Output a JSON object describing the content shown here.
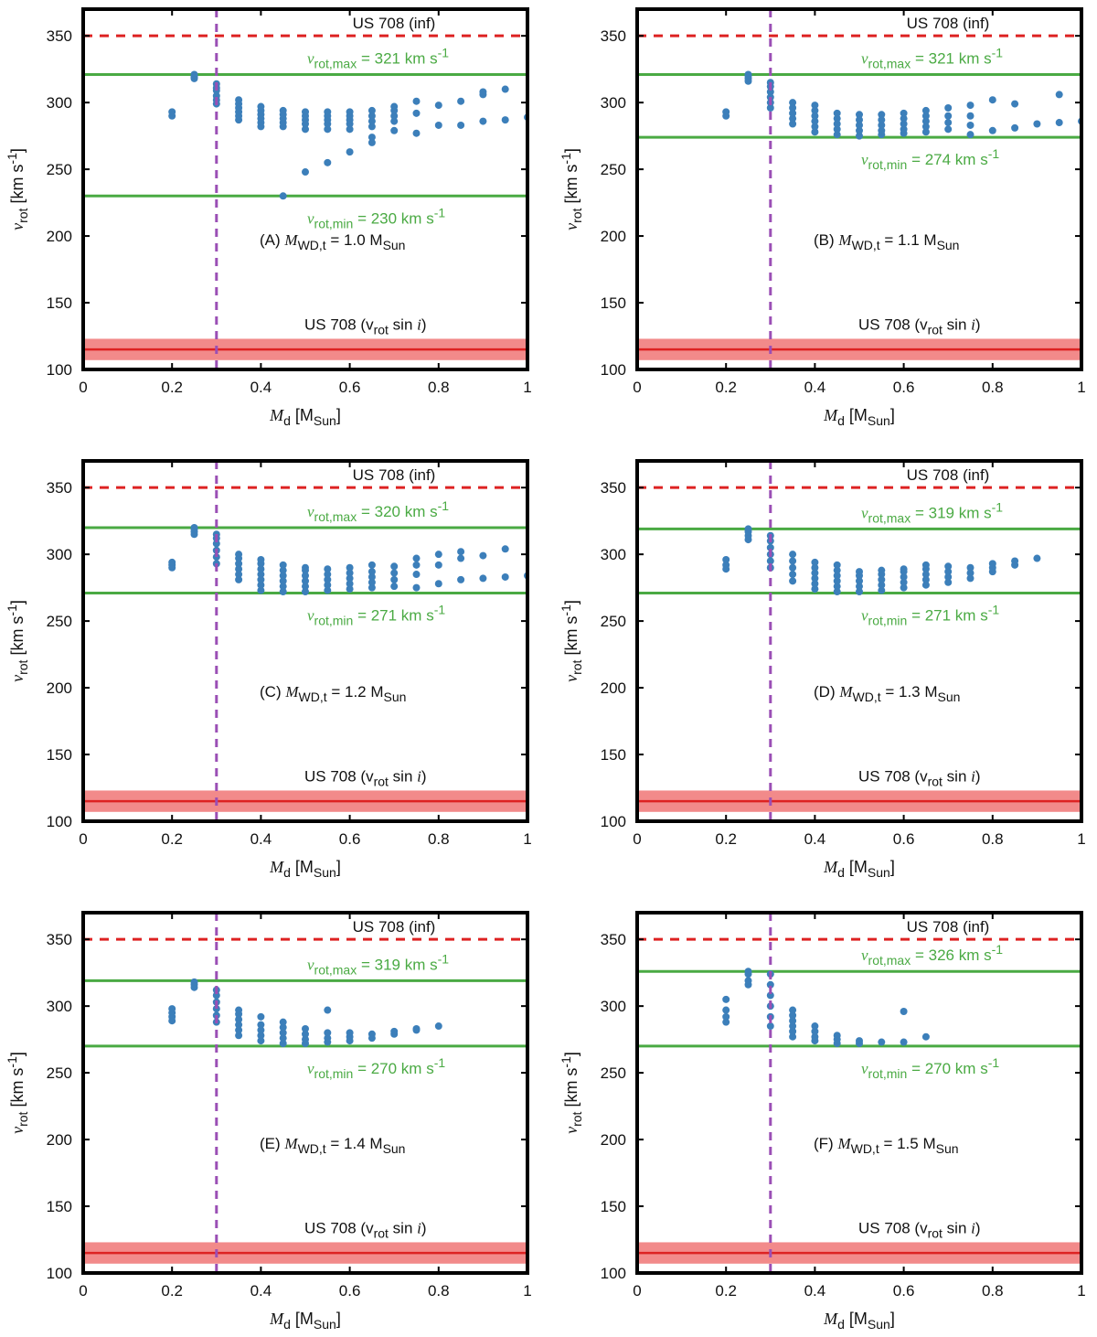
{
  "colors": {
    "dots": "#3c7fba",
    "green": "#4aaa43",
    "red": "#dd2222",
    "red_band": "#f28a8a",
    "purple": "#9b4fb5",
    "axis": "#000000"
  },
  "chart_data": [
    {
      "type": "scatter",
      "panel": "A",
      "label_prefix": "(A) ",
      "label_mass": "1.0",
      "xlabel_main": "M",
      "xlabel_sub": "d",
      "xlabel_unit_open": " [M",
      "xlabel_unit_sub": "Sun",
      "xlabel_unit_close": "]",
      "ylabel_main": "v",
      "ylabel_sub": "rot",
      "ylabel_unit": " [km s",
      "ylabel_unit_sup": "-1",
      "ylabel_unit_close": "]",
      "xlim": [
        0,
        1
      ],
      "ylim": [
        100,
        370
      ],
      "xticks": [
        "0",
        "0.2",
        "0.4",
        "0.6",
        "0.8",
        "1"
      ],
      "yticks": [
        "100",
        "150",
        "200",
        "250",
        "300",
        "350"
      ],
      "vrot_max": 321,
      "vrot_max_text": "321",
      "vrot_min": 230,
      "vrot_min_text": "230",
      "us708_inf": 350,
      "us708_inf_label": "US 708 (inf)",
      "us708_vsini": 115,
      "us708_vsini_band": [
        107,
        123
      ],
      "us708_vsini_label": "US 708 (v",
      "vline_x": 0.3,
      "series": [
        {
          "x": 0.2,
          "y": [
            290,
            293
          ]
        },
        {
          "x": 0.25,
          "y": [
            318,
            319,
            320,
            321
          ]
        },
        {
          "x": 0.3,
          "y": [
            299,
            302,
            305,
            309,
            311,
            314
          ]
        },
        {
          "x": 0.35,
          "y": [
            287,
            290,
            293,
            296,
            299,
            302
          ]
        },
        {
          "x": 0.4,
          "y": [
            282,
            285,
            288,
            291,
            294,
            297
          ]
        },
        {
          "x": 0.45,
          "y": [
            230,
            282,
            285,
            288,
            291,
            294
          ]
        },
        {
          "x": 0.5,
          "y": [
            248,
            280,
            284,
            287,
            290,
            293
          ]
        },
        {
          "x": 0.55,
          "y": [
            255,
            280,
            284,
            287,
            290,
            293
          ]
        },
        {
          "x": 0.6,
          "y": [
            263,
            280,
            284,
            287,
            290,
            293
          ]
        },
        {
          "x": 0.65,
          "y": [
            270,
            274,
            282,
            286,
            290,
            294
          ]
        },
        {
          "x": 0.7,
          "y": [
            279,
            286,
            290,
            294,
            297
          ]
        },
        {
          "x": 0.75,
          "y": [
            277,
            292,
            301
          ]
        },
        {
          "x": 0.8,
          "y": [
            283,
            298
          ]
        },
        {
          "x": 0.85,
          "y": [
            283,
            301
          ]
        },
        {
          "x": 0.9,
          "y": [
            286,
            306,
            308
          ]
        },
        {
          "x": 0.95,
          "y": [
            287,
            310
          ]
        },
        {
          "x": 1.0,
          "y": [
            289
          ]
        }
      ]
    },
    {
      "type": "scatter",
      "panel": "B",
      "label_prefix": "(B) ",
      "label_mass": "1.1",
      "xlabel_main": "M",
      "xlabel_sub": "d",
      "xlabel_unit_open": " [M",
      "xlabel_unit_sub": "Sun",
      "xlabel_unit_close": "]",
      "ylabel_main": "v",
      "ylabel_sub": "rot",
      "ylabel_unit": " [km s",
      "ylabel_unit_sup": "-1",
      "ylabel_unit_close": "]",
      "xlim": [
        0,
        1
      ],
      "ylim": [
        100,
        370
      ],
      "xticks": [
        "0",
        "0.2",
        "0.4",
        "0.6",
        "0.8",
        "1"
      ],
      "yticks": [
        "100",
        "150",
        "200",
        "250",
        "300",
        "350"
      ],
      "vrot_max": 321,
      "vrot_max_text": "321",
      "vrot_min": 274,
      "vrot_min_text": "274",
      "us708_inf": 350,
      "us708_inf_label": "US 708 (inf)",
      "us708_vsini": 115,
      "us708_vsini_band": [
        107,
        123
      ],
      "us708_vsini_label": "US 708 (v",
      "vline_x": 0.3,
      "series": [
        {
          "x": 0.2,
          "y": [
            290,
            293
          ]
        },
        {
          "x": 0.25,
          "y": [
            316,
            318,
            320,
            321
          ]
        },
        {
          "x": 0.3,
          "y": [
            296,
            300,
            304,
            308,
            312,
            315
          ]
        },
        {
          "x": 0.35,
          "y": [
            284,
            288,
            292,
            296,
            300
          ]
        },
        {
          "x": 0.4,
          "y": [
            278,
            282,
            286,
            290,
            294,
            298
          ]
        },
        {
          "x": 0.45,
          "y": [
            276,
            280,
            284,
            288,
            292
          ]
        },
        {
          "x": 0.5,
          "y": [
            275,
            279,
            283,
            287,
            291
          ]
        },
        {
          "x": 0.55,
          "y": [
            276,
            279,
            283,
            287,
            291
          ]
        },
        {
          "x": 0.6,
          "y": [
            277,
            280,
            284,
            288,
            292
          ]
        },
        {
          "x": 0.65,
          "y": [
            278,
            282,
            286,
            290,
            294
          ]
        },
        {
          "x": 0.7,
          "y": [
            280,
            285,
            290,
            296
          ]
        },
        {
          "x": 0.75,
          "y": [
            276,
            283,
            290,
            298
          ]
        },
        {
          "x": 0.8,
          "y": [
            279,
            302
          ]
        },
        {
          "x": 0.85,
          "y": [
            281,
            299
          ]
        },
        {
          "x": 0.9,
          "y": [
            284
          ]
        },
        {
          "x": 0.95,
          "y": [
            285,
            306
          ]
        },
        {
          "x": 1.0,
          "y": [
            286
          ]
        }
      ]
    },
    {
      "type": "scatter",
      "panel": "C",
      "label_prefix": "(C) ",
      "label_mass": "1.2",
      "xlabel_main": "M",
      "xlabel_sub": "d",
      "xlabel_unit_open": " [M",
      "xlabel_unit_sub": "Sun",
      "xlabel_unit_close": "]",
      "ylabel_main": "v",
      "ylabel_sub": "rot",
      "ylabel_unit": " [km s",
      "ylabel_unit_sup": "-1",
      "ylabel_unit_close": "]",
      "xlim": [
        0,
        1
      ],
      "ylim": [
        100,
        370
      ],
      "xticks": [
        "0",
        "0.2",
        "0.4",
        "0.6",
        "0.8",
        "1"
      ],
      "yticks": [
        "100",
        "150",
        "200",
        "250",
        "300",
        "350"
      ],
      "vrot_max": 320,
      "vrot_max_text": "320",
      "vrot_min": 271,
      "vrot_min_text": "271",
      "us708_inf": 350,
      "us708_inf_label": "US 708 (inf)",
      "us708_vsini": 115,
      "us708_vsini_band": [
        107,
        123
      ],
      "us708_vsini_label": "US 708 (v",
      "vline_x": 0.3,
      "series": [
        {
          "x": 0.2,
          "y": [
            290,
            292,
            294
          ]
        },
        {
          "x": 0.25,
          "y": [
            315,
            317,
            319,
            320
          ]
        },
        {
          "x": 0.3,
          "y": [
            293,
            298,
            303,
            308,
            312,
            315
          ]
        },
        {
          "x": 0.35,
          "y": [
            281,
            285,
            289,
            293,
            297,
            300
          ]
        },
        {
          "x": 0.4,
          "y": [
            273,
            277,
            281,
            285,
            289,
            293,
            296
          ]
        },
        {
          "x": 0.45,
          "y": [
            272,
            276,
            280,
            284,
            288,
            292
          ]
        },
        {
          "x": 0.5,
          "y": [
            272,
            276,
            280,
            284,
            288,
            290
          ]
        },
        {
          "x": 0.55,
          "y": [
            273,
            277,
            281,
            285,
            289
          ]
        },
        {
          "x": 0.6,
          "y": [
            274,
            278,
            282,
            286,
            290
          ]
        },
        {
          "x": 0.65,
          "y": [
            275,
            279,
            283,
            287,
            292
          ]
        },
        {
          "x": 0.7,
          "y": [
            276,
            281,
            286,
            291
          ]
        },
        {
          "x": 0.75,
          "y": [
            275,
            285,
            292,
            297
          ]
        },
        {
          "x": 0.8,
          "y": [
            278,
            292,
            300
          ]
        },
        {
          "x": 0.85,
          "y": [
            281,
            297,
            302
          ]
        },
        {
          "x": 0.9,
          "y": [
            282,
            299
          ]
        },
        {
          "x": 0.95,
          "y": [
            283,
            304
          ]
        },
        {
          "x": 1.0,
          "y": [
            284
          ]
        }
      ]
    },
    {
      "type": "scatter",
      "panel": "D",
      "label_prefix": "(D) ",
      "label_mass": "1.3",
      "xlabel_main": "M",
      "xlabel_sub": "d",
      "xlabel_unit_open": " [M",
      "xlabel_unit_sub": "Sun",
      "xlabel_unit_close": "]",
      "ylabel_main": "v",
      "ylabel_sub": "rot",
      "ylabel_unit": " [km s",
      "ylabel_unit_sup": "-1",
      "ylabel_unit_close": "]",
      "xlim": [
        0,
        1
      ],
      "ylim": [
        100,
        370
      ],
      "xticks": [
        "0",
        "0.2",
        "0.4",
        "0.6",
        "0.8",
        "1"
      ],
      "yticks": [
        "100",
        "150",
        "200",
        "250",
        "300",
        "350"
      ],
      "vrot_max": 319,
      "vrot_max_text": "319",
      "vrot_min": 271,
      "vrot_min_text": "271",
      "us708_inf": 350,
      "us708_inf_label": "US 708 (inf)",
      "us708_vsini": 115,
      "us708_vsini_band": [
        107,
        123
      ],
      "us708_vsini_label": "US 708 (v",
      "vline_x": 0.3,
      "series": [
        {
          "x": 0.2,
          "y": [
            289,
            292,
            296
          ]
        },
        {
          "x": 0.25,
          "y": [
            311,
            314,
            317,
            319
          ]
        },
        {
          "x": 0.3,
          "y": [
            290,
            295,
            300,
            305,
            310,
            314
          ]
        },
        {
          "x": 0.35,
          "y": [
            280,
            285,
            290,
            295,
            300
          ]
        },
        {
          "x": 0.4,
          "y": [
            274,
            278,
            282,
            286,
            290,
            294
          ]
        },
        {
          "x": 0.45,
          "y": [
            272,
            276,
            280,
            284,
            288,
            292
          ]
        },
        {
          "x": 0.5,
          "y": [
            272,
            276,
            280,
            284,
            287
          ]
        },
        {
          "x": 0.55,
          "y": [
            273,
            277,
            281,
            285,
            288
          ]
        },
        {
          "x": 0.6,
          "y": [
            275,
            279,
            283,
            287,
            289
          ]
        },
        {
          "x": 0.65,
          "y": [
            277,
            281,
            285,
            289,
            292
          ]
        },
        {
          "x": 0.7,
          "y": [
            279,
            283,
            287,
            291
          ]
        },
        {
          "x": 0.75,
          "y": [
            282,
            286,
            290
          ]
        },
        {
          "x": 0.8,
          "y": [
            287,
            290,
            293
          ]
        },
        {
          "x": 0.85,
          "y": [
            292,
            295
          ]
        },
        {
          "x": 0.9,
          "y": [
            297
          ]
        }
      ]
    },
    {
      "type": "scatter",
      "panel": "E",
      "label_prefix": "(E) ",
      "label_mass": "1.4",
      "xlabel_main": "M",
      "xlabel_sub": "d",
      "xlabel_unit_open": " [M",
      "xlabel_unit_sub": "Sun",
      "xlabel_unit_close": "]",
      "ylabel_main": "v",
      "ylabel_sub": "rot",
      "ylabel_unit": " [km s",
      "ylabel_unit_sup": "-1",
      "ylabel_unit_close": "]",
      "xlim": [
        0,
        1
      ],
      "ylim": [
        100,
        370
      ],
      "xticks": [
        "0",
        "0.2",
        "0.4",
        "0.6",
        "0.8",
        "1"
      ],
      "yticks": [
        "100",
        "150",
        "200",
        "250",
        "300",
        "350"
      ],
      "vrot_max": 319,
      "vrot_max_text": "319",
      "vrot_min": 270,
      "vrot_min_text": "270",
      "us708_inf": 350,
      "us708_inf_label": "US 708 (inf)",
      "us708_vsini": 115,
      "us708_vsini_band": [
        107,
        123
      ],
      "us708_vsini_label": "US 708 (v",
      "vline_x": 0.3,
      "series": [
        {
          "x": 0.2,
          "y": [
            289,
            292,
            295,
            298
          ]
        },
        {
          "x": 0.25,
          "y": [
            314,
            316,
            318
          ]
        },
        {
          "x": 0.3,
          "y": [
            288,
            293,
            298,
            303,
            308,
            312
          ]
        },
        {
          "x": 0.35,
          "y": [
            278,
            282,
            286,
            290,
            294,
            297
          ]
        },
        {
          "x": 0.4,
          "y": [
            274,
            278,
            282,
            286,
            292
          ]
        },
        {
          "x": 0.45,
          "y": [
            272,
            276,
            280,
            284,
            288
          ]
        },
        {
          "x": 0.5,
          "y": [
            272,
            275,
            279,
            283
          ]
        },
        {
          "x": 0.55,
          "y": [
            273,
            276,
            280,
            297
          ]
        },
        {
          "x": 0.6,
          "y": [
            274,
            277,
            280
          ]
        },
        {
          "x": 0.65,
          "y": [
            276,
            279
          ]
        },
        {
          "x": 0.7,
          "y": [
            279,
            281
          ]
        },
        {
          "x": 0.75,
          "y": [
            282,
            283
          ]
        },
        {
          "x": 0.8,
          "y": [
            285
          ]
        }
      ]
    },
    {
      "type": "scatter",
      "panel": "F",
      "label_prefix": "(F) ",
      "label_mass": "1.5",
      "xlabel_main": "M",
      "xlabel_sub": "d",
      "xlabel_unit_open": " [M",
      "xlabel_unit_sub": "Sun",
      "xlabel_unit_close": "]",
      "ylabel_main": "v",
      "ylabel_sub": "rot",
      "ylabel_unit": " [km s",
      "ylabel_unit_sup": "-1",
      "ylabel_unit_close": "]",
      "xlim": [
        0,
        1
      ],
      "ylim": [
        100,
        370
      ],
      "xticks": [
        "0",
        "0.2",
        "0.4",
        "0.6",
        "0.8",
        "1"
      ],
      "yticks": [
        "100",
        "150",
        "200",
        "250",
        "300",
        "350"
      ],
      "vrot_max": 326,
      "vrot_max_text": "326",
      "vrot_min": 270,
      "vrot_min_text": "270",
      "us708_inf": 350,
      "us708_inf_label": "US 708 (inf)",
      "us708_vsini": 115,
      "us708_vsini_band": [
        107,
        123
      ],
      "us708_vsini_label": "US 708 (v",
      "vline_x": 0.3,
      "series": [
        {
          "x": 0.2,
          "y": [
            288,
            292,
            297,
            305
          ]
        },
        {
          "x": 0.25,
          "y": [
            316,
            319,
            324,
            326
          ]
        },
        {
          "x": 0.3,
          "y": [
            285,
            292,
            300,
            308,
            316,
            324
          ]
        },
        {
          "x": 0.35,
          "y": [
            277,
            281,
            285,
            289,
            293,
            297
          ]
        },
        {
          "x": 0.4,
          "y": [
            274,
            277,
            281,
            285
          ]
        },
        {
          "x": 0.45,
          "y": [
            272,
            275,
            278
          ]
        },
        {
          "x": 0.5,
          "y": [
            272,
            274
          ]
        },
        {
          "x": 0.55,
          "y": [
            273
          ]
        },
        {
          "x": 0.6,
          "y": [
            273,
            296
          ]
        },
        {
          "x": 0.65,
          "y": [
            277
          ]
        }
      ]
    }
  ],
  "text": {
    "vrot_max_prefix": "v",
    "vrot_max_sub": "rot,max",
    "vrot_min_sub": "rot,min",
    "eq": " = ",
    "km_s": " km s",
    "sup_m1": "-1",
    "label_M": "M",
    "label_WDt": "WD,t",
    "label_eq": " = ",
    "label_Msun": " M",
    "label_sun": "Sun",
    "vsini_rot": "rot",
    "vsini_sin": " sin ",
    "vsini_i": "i",
    "vsini_close": ")"
  }
}
